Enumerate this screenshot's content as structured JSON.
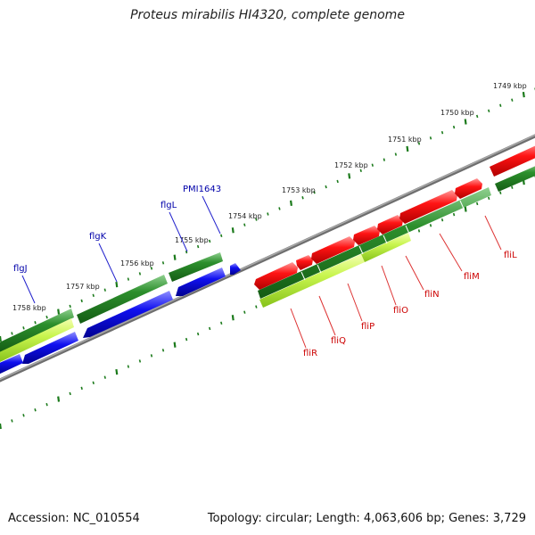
{
  "title": "Proteus mirabilis HI4320, complete genome",
  "accession": "Accession: NC_010554",
  "summary": "Topology: circular; Length: 4,063,606 bp; Genes: 3,729",
  "colors": {
    "forward_gene": "#ff0000",
    "reverse_gene": "#0000ee",
    "cds_dark": "#2a8a2a",
    "cds_light": "#bff04a",
    "backbone": "#888888",
    "tick": "#1b7a1b",
    "label_blue": "#0000aa",
    "label_red": "#cc0000"
  },
  "ruler": [
    "1749 kbp",
    "1750 kbp",
    "1751 kbp",
    "1752 kbp",
    "1753 kbp",
    "1754 kbp",
    "1755 kbp",
    "1756 kbp",
    "1757 kbp",
    "1758 kbp"
  ],
  "genes_reverse": [
    "flgJ",
    "flgK",
    "flgL",
    "PMI1643"
  ],
  "genes_forward": [
    "fliL",
    "fliM",
    "fliN",
    "fliO",
    "fliP",
    "fliQ",
    "fliR"
  ]
}
